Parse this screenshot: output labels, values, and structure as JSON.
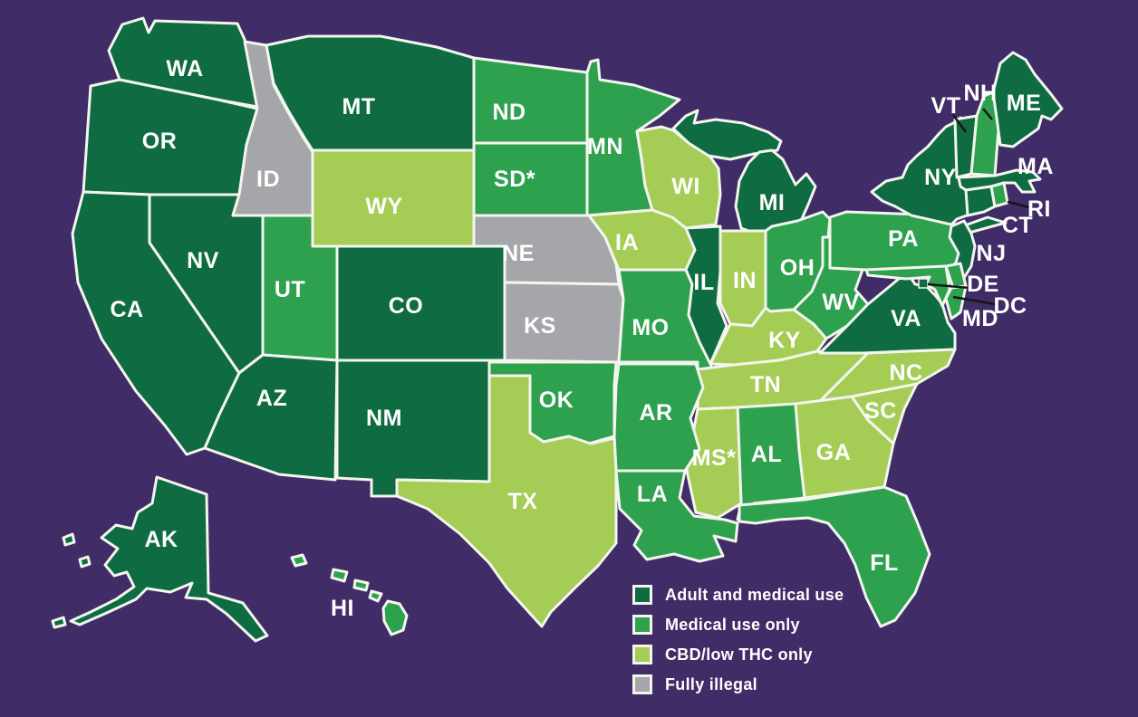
{
  "colors": {
    "background": "#402C66",
    "border": "#F3F5EE",
    "label": "#FFFFFF",
    "callout": "#161616",
    "adult_medical": "#0F6B41",
    "medical": "#2EA14F",
    "cbd": "#A5CC55",
    "illegal": "#A4A6A9"
  },
  "legend": {
    "items": [
      {
        "key": "adult_medical",
        "label": "Adult and medical use"
      },
      {
        "key": "medical",
        "label": "Medical use only"
      },
      {
        "key": "cbd",
        "label": "CBD/low THC only"
      },
      {
        "key": "illegal",
        "label": "Fully illegal"
      }
    ]
  },
  "states": [
    {
      "id": "WA",
      "label": "WA",
      "category": "adult_medical"
    },
    {
      "id": "OR",
      "label": "OR",
      "category": "adult_medical"
    },
    {
      "id": "CA",
      "label": "CA",
      "category": "adult_medical"
    },
    {
      "id": "NV",
      "label": "NV",
      "category": "adult_medical"
    },
    {
      "id": "ID",
      "label": "ID",
      "category": "illegal"
    },
    {
      "id": "MT",
      "label": "MT",
      "category": "adult_medical"
    },
    {
      "id": "WY",
      "label": "WY",
      "category": "cbd"
    },
    {
      "id": "UT",
      "label": "UT",
      "category": "medical"
    },
    {
      "id": "CO",
      "label": "CO",
      "category": "adult_medical"
    },
    {
      "id": "AZ",
      "label": "AZ",
      "category": "adult_medical"
    },
    {
      "id": "NM",
      "label": "NM",
      "category": "adult_medical"
    },
    {
      "id": "ND",
      "label": "ND",
      "category": "medical"
    },
    {
      "id": "SD",
      "label": "SD*",
      "category": "medical"
    },
    {
      "id": "NE",
      "label": "NE",
      "category": "illegal"
    },
    {
      "id": "KS",
      "label": "KS",
      "category": "illegal"
    },
    {
      "id": "MN",
      "label": "MN",
      "category": "medical"
    },
    {
      "id": "IA",
      "label": "IA",
      "category": "cbd"
    },
    {
      "id": "MO",
      "label": "MO",
      "category": "medical"
    },
    {
      "id": "WI",
      "label": "WI",
      "category": "cbd"
    },
    {
      "id": "IL",
      "label": "IL",
      "category": "adult_medical"
    },
    {
      "id": "MI",
      "label": "MI",
      "category": "adult_medical"
    },
    {
      "id": "IN",
      "label": "IN",
      "category": "cbd"
    },
    {
      "id": "OH",
      "label": "OH",
      "category": "medical"
    },
    {
      "id": "KY",
      "label": "KY",
      "category": "cbd"
    },
    {
      "id": "TN",
      "label": "TN",
      "category": "cbd"
    },
    {
      "id": "WV",
      "label": "WV",
      "category": "medical"
    },
    {
      "id": "VA",
      "label": "VA",
      "category": "adult_medical"
    },
    {
      "id": "NC",
      "label": "NC",
      "category": "cbd"
    },
    {
      "id": "SC",
      "label": "SC",
      "category": "cbd"
    },
    {
      "id": "GA",
      "label": "GA",
      "category": "cbd"
    },
    {
      "id": "AL",
      "label": "AL",
      "category": "medical"
    },
    {
      "id": "MS",
      "label": "MS*",
      "category": "cbd"
    },
    {
      "id": "AR",
      "label": "AR",
      "category": "medical"
    },
    {
      "id": "LA",
      "label": "LA",
      "category": "medical"
    },
    {
      "id": "OK",
      "label": "OK",
      "category": "medical"
    },
    {
      "id": "TX",
      "label": "TX",
      "category": "cbd"
    },
    {
      "id": "FL",
      "label": "FL",
      "category": "medical"
    },
    {
      "id": "PA",
      "label": "PA",
      "category": "medical"
    },
    {
      "id": "NY",
      "label": "NY",
      "category": "adult_medical"
    },
    {
      "id": "NJ",
      "label": "NJ",
      "category": "adult_medical"
    },
    {
      "id": "VT",
      "label": "VT",
      "category": "adult_medical"
    },
    {
      "id": "NH",
      "label": "NH",
      "category": "medical"
    },
    {
      "id": "ME",
      "label": "ME",
      "category": "adult_medical"
    },
    {
      "id": "MA",
      "label": "MA",
      "category": "adult_medical"
    },
    {
      "id": "CT",
      "label": "CT",
      "category": "adult_medical"
    },
    {
      "id": "RI",
      "label": "RI",
      "category": "medical"
    },
    {
      "id": "DE",
      "label": "DE",
      "category": "medical"
    },
    {
      "id": "MD",
      "label": "MD",
      "category": "medical"
    },
    {
      "id": "DC",
      "label": "DC",
      "category": "adult_medical"
    },
    {
      "id": "AK",
      "label": "AK",
      "category": "adult_medical"
    },
    {
      "id": "HI",
      "label": "HI",
      "category": "medical"
    }
  ]
}
